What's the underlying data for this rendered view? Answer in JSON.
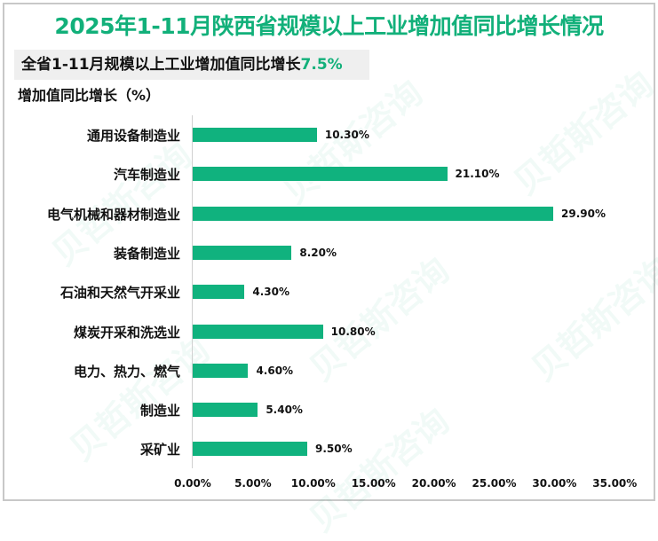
{
  "title": "2025年1-11月陕西省规模以上工业增加值同比增长情况",
  "summary": {
    "text": "全省1-11月规模以上工业增加值同比增长",
    "value": "7.5%"
  },
  "ylabel": "增加值同比增长（%）",
  "watermark": "贝哲斯咨询",
  "colors": {
    "bar": "#10b27e",
    "title": "#12b07a"
  },
  "chart_data": {
    "type": "bar",
    "orientation": "horizontal",
    "title": "2025年1-11月陕西省规模以上工业增加值同比增长情况",
    "subtitle": "全省1-11月规模以上工业增加值同比增长7.5%",
    "ylabel": "增加值同比增长（%）",
    "xlabel": "",
    "categories": [
      "通用设备制造业",
      "汽车制造业",
      "电气机械和器材制造业",
      "装备制造业",
      "石油和天然气开采业",
      "煤炭开采和洗选业",
      "电力、热力、燃气",
      "制造业",
      "采矿业"
    ],
    "values": [
      10.3,
      21.1,
      29.9,
      8.2,
      4.3,
      10.8,
      4.6,
      5.4,
      9.5
    ],
    "labels": [
      "10.30%",
      "21.10%",
      "29.90%",
      "8.20%",
      "4.30%",
      "10.80%",
      "4.60%",
      "5.40%",
      "9.50%"
    ],
    "xlim": [
      0,
      35
    ],
    "ticks": [
      "0.00%",
      "5.00%",
      "10.00%",
      "15.00%",
      "20.00%",
      "25.00%",
      "30.00%",
      "35.00%"
    ],
    "grid": false,
    "legend": "none"
  }
}
